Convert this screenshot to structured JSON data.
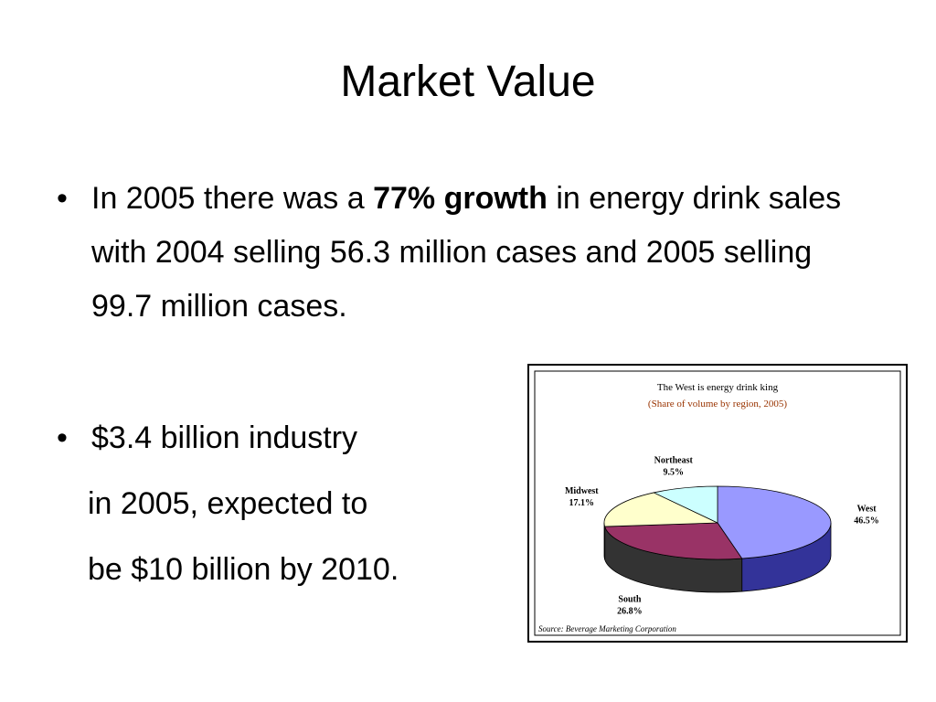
{
  "title": "Market Value",
  "bullets": [
    {
      "segments": [
        {
          "text": "In 2005 there was a "
        },
        {
          "text": "77% growth",
          "bold": true
        },
        {
          "text": " in energy drink sales with 2004 selling 56.3 million cases and 2005 selling 99.7 million cases."
        }
      ]
    },
    {
      "lines": [
        "$3.4 billion industry",
        "in 2005, expected to",
        "be $10 billion by 2010."
      ]
    }
  ],
  "chart_data": {
    "type": "pie",
    "title": "The West is energy drink king",
    "subtitle": "(Share of volume by region, 2005)",
    "source": "Source:  Beverage Marketing Corporation",
    "categories": [
      "West",
      "South",
      "Midwest",
      "Northeast"
    ],
    "values": [
      46.5,
      26.8,
      17.1,
      9.5
    ],
    "value_labels": [
      "46.5%",
      "26.8%",
      "17.1%",
      "9.5%"
    ],
    "colors": [
      "#9999ff",
      "#993366",
      "#ffffcc",
      "#ccffff"
    ],
    "side_colors": [
      "#333399",
      "#333333",
      "#cccc99",
      "#99cccc"
    ]
  }
}
